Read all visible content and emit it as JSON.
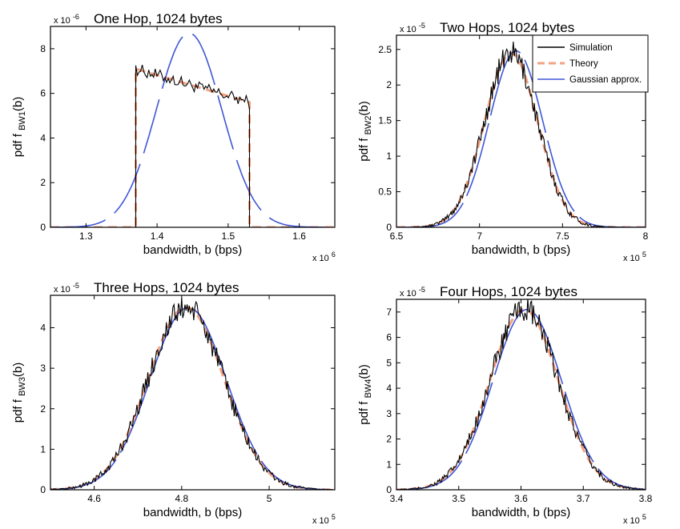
{
  "chart_data": [
    {
      "type": "line",
      "title": "One Hop, 1024 bytes",
      "xlabel": "bandwidth, b (bps)",
      "ylabel": "pdf f",
      "ylabel_sub": "BW1",
      "ylabel_end": "(b)",
      "x_multiplier": "x 10",
      "x_exp": "6",
      "y_multiplier": "x 10",
      "y_exp": "-6",
      "xlim": [
        1.25,
        1.65
      ],
      "ylim": [
        0,
        9
      ],
      "xticks": [
        1.3,
        1.4,
        1.5,
        1.6
      ],
      "xtick_labels": [
        "1.3",
        "1.4",
        "1.5",
        "1.6"
      ],
      "yticks": [
        0,
        2,
        4,
        6,
        8
      ],
      "ytick_labels": [
        "0",
        "2",
        "4",
        "6",
        "8"
      ],
      "model": {
        "kind": "uniform",
        "lo": 1.37,
        "hi": 1.53,
        "y_lo": 7.1,
        "y_hi": 5.6,
        "mu": 1.445,
        "sigma": 0.046,
        "peak": 8.7
      },
      "legend": false
    },
    {
      "type": "line",
      "title": "Two Hops, 1024 bytes",
      "xlabel": "bandwidth, b (bps)",
      "ylabel": "pdf f",
      "ylabel_sub": "BW2",
      "ylabel_end": "(b)",
      "x_multiplier": "x 10",
      "x_exp": "5",
      "y_multiplier": "x 10",
      "y_exp": "-5",
      "xlim": [
        6.5,
        8
      ],
      "ylim": [
        0,
        2.7
      ],
      "xticks": [
        6.5,
        7,
        7.5,
        8
      ],
      "xtick_labels": [
        "6.5",
        "7",
        "7.5",
        "8"
      ],
      "yticks": [
        0,
        0.5,
        1,
        1.5,
        2,
        2.5
      ],
      "ytick_labels": [
        "0",
        "0.5",
        "1",
        "1.5",
        "2",
        "2.5"
      ],
      "model": {
        "kind": "bell",
        "mu": 7.19,
        "sigma": 0.16,
        "peak": 2.45,
        "g_mu": 7.22,
        "g_sigma": 0.16,
        "g_peak": 2.48
      },
      "legend": true
    },
    {
      "type": "line",
      "title": "Three Hops, 1024 bytes",
      "xlabel": "bandwidth, b (bps)",
      "ylabel": "pdf f",
      "ylabel_sub": "BW3",
      "ylabel_end": "(b)",
      "x_multiplier": "x 10",
      "x_exp": "5",
      "y_multiplier": "x 10",
      "y_exp": "-5",
      "xlim": [
        4.5,
        5.15
      ],
      "ylim": [
        0,
        4.8
      ],
      "xticks": [
        4.6,
        4.8,
        5
      ],
      "xtick_labels": [
        "4.6",
        "4.8",
        "5"
      ],
      "yticks": [
        0,
        1,
        2,
        3,
        4
      ],
      "ytick_labels": [
        "0",
        "1",
        "2",
        "3",
        "4"
      ],
      "model": {
        "kind": "bell",
        "mu": 4.81,
        "sigma": 0.087,
        "peak": 4.5,
        "g_mu": 4.815,
        "g_sigma": 0.087,
        "g_peak": 4.5
      },
      "legend": false
    },
    {
      "type": "line",
      "title": "Four Hops, 1024 bytes",
      "xlabel": "bandwidth, b (bps)",
      "ylabel": "pdf f",
      "ylabel_sub": "BW4",
      "ylabel_end": "(b)",
      "x_multiplier": "x 10",
      "x_exp": "5",
      "y_multiplier": "x 10",
      "y_exp": "-5",
      "xlim": [
        3.4,
        3.8
      ],
      "ylim": [
        0,
        7.5
      ],
      "xticks": [
        3.4,
        3.5,
        3.6,
        3.7,
        3.8
      ],
      "xtick_labels": [
        "3.4",
        "3.5",
        "3.6",
        "3.7",
        "3.8"
      ],
      "yticks": [
        0,
        1,
        2,
        3,
        4,
        5,
        6,
        7
      ],
      "ytick_labels": [
        "0",
        "1",
        "2",
        "3",
        "4",
        "5",
        "6",
        "7"
      ],
      "model": {
        "kind": "bell",
        "mu": 3.605,
        "sigma": 0.055,
        "peak": 7.1,
        "g_mu": 3.61,
        "g_sigma": 0.055,
        "g_peak": 7.1
      },
      "legend": false
    }
  ],
  "legend": {
    "entries": [
      {
        "label": "Simulation",
        "color": "#000000",
        "style": "solid"
      },
      {
        "label": "Theory",
        "color": "#f4a182",
        "style": "dashed"
      },
      {
        "label": "Gaussian approx.",
        "color": "#3f57d6",
        "style": "solid"
      }
    ]
  },
  "colors": {
    "simulation": "#000000",
    "theory": "#f4a182",
    "gaussian": "#3f57d6"
  }
}
